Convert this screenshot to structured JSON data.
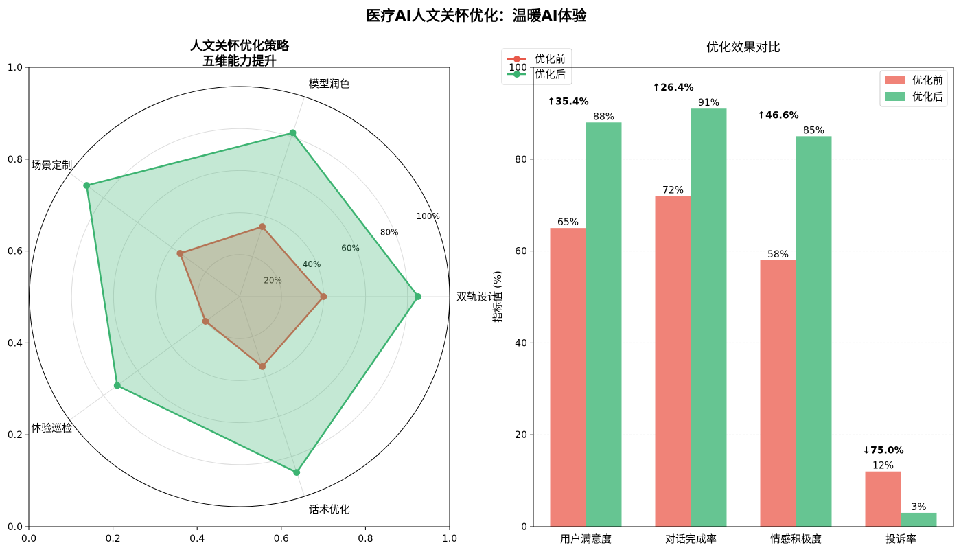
{
  "page_title": "医疗AI人文关怀优化：温暖AI体验",
  "colors": {
    "before": "#e8594a",
    "after": "#3cb371",
    "before_bar": "#f08378",
    "after_bar": "#66c592",
    "up": "#27ae60",
    "down": "#e74c3c"
  },
  "chart_data": [
    {
      "type": "radar",
      "title": [
        "人文关怀优化策略",
        "五维能力提升"
      ],
      "axes": [
        "双轨设计",
        "模型润色",
        "场景定制",
        "体验巡检",
        "话术优化"
      ],
      "radial_ticks": [
        "20%",
        "40%",
        "60%",
        "80%",
        "100%"
      ],
      "rlim": [
        0,
        100
      ],
      "outer_frame_ticks": {
        "x": [
          "0.0",
          "0.2",
          "0.4",
          "0.6",
          "0.8",
          "1.0"
        ],
        "y": [
          "0.0",
          "0.2",
          "0.4",
          "0.6",
          "0.8",
          "1.0"
        ]
      },
      "series": [
        {
          "name": "优化前",
          "values": [
            40,
            35,
            35,
            20,
            35
          ]
        },
        {
          "name": "优化后",
          "values": [
            85,
            82,
            90,
            72,
            88
          ]
        }
      ],
      "legend": "top-left",
      "grid": true
    },
    {
      "type": "bar",
      "title": "优化效果对比",
      "categories": [
        "用户满意度",
        "对话完成率",
        "情感积极度",
        "投诉率"
      ],
      "series": [
        {
          "name": "优化前",
          "values": [
            65,
            72,
            58,
            12
          ]
        },
        {
          "name": "优化后",
          "values": [
            88,
            91,
            85,
            3
          ]
        }
      ],
      "value_labels": {
        "before": [
          "65%",
          "72%",
          "58%",
          "12%"
        ],
        "after": [
          "88%",
          "91%",
          "85%",
          "3%"
        ]
      },
      "change_labels": [
        "↑35.4%",
        "↑26.4%",
        "↑46.6%",
        "↓75.0%"
      ],
      "change_direction": [
        "up",
        "up",
        "up",
        "down"
      ],
      "ylabel": "指标值 (%)",
      "ylim": [
        0,
        100
      ],
      "yticks": [
        "0",
        "20",
        "40",
        "60",
        "80",
        "100"
      ],
      "legend": "top-right",
      "grid": true
    }
  ]
}
